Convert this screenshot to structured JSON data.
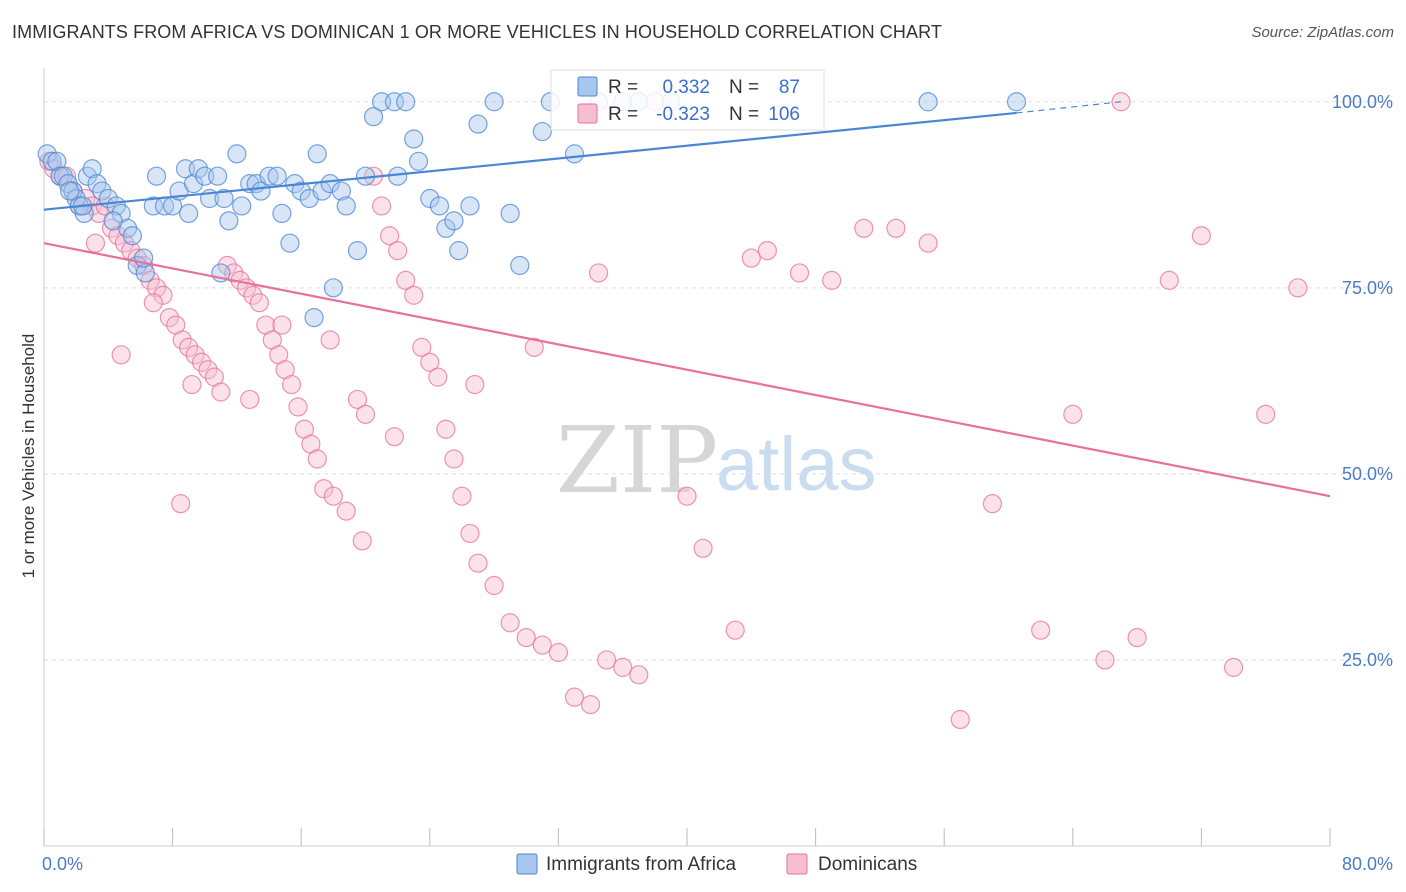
{
  "title": "IMMIGRANTS FROM AFRICA VS DOMINICAN 1 OR MORE VEHICLES IN HOUSEHOLD CORRELATION CHART",
  "source": "Source: ZipAtlas.com",
  "watermark": {
    "zip": "ZIP",
    "atlas": "atlas"
  },
  "colors": {
    "blue": "#4a86d4",
    "pink": "#e8709a",
    "blue_fill": "#a9c6ee",
    "pink_fill": "#f6bfd1",
    "tick_text": "#4a7cc7"
  },
  "stats_legend": [
    {
      "r_label": "R =",
      "r_value": "0.332",
      "n_label": "N =",
      "n_value": "87",
      "color": "blue"
    },
    {
      "r_label": "R =",
      "r_value": "-0.323",
      "n_label": "N =",
      "n_value": "106",
      "color": "pink"
    }
  ],
  "chart_data": {
    "type": "scatter",
    "xlabel": "",
    "ylabel": "1 or more Vehicles in Household",
    "xlim": [
      0,
      80
    ],
    "ylim": [
      0,
      104
    ],
    "x_tick_labels": [
      "0.0%",
      "80.0%"
    ],
    "y_ticks": [
      25,
      50,
      75,
      100
    ],
    "y_tick_labels": [
      "25.0%",
      "50.0%",
      "75.0%",
      "100.0%"
    ],
    "grid": true,
    "legend": "bottom-center",
    "series": [
      {
        "name": "Immigrants from Africa",
        "color": "blue",
        "trend": {
          "x": [
            0,
            60.5
          ],
          "y": [
            85.5,
            98.5
          ],
          "dashed_to": [
            67,
            100
          ]
        },
        "points": [
          [
            0.2,
            93
          ],
          [
            0.5,
            92
          ],
          [
            0.8,
            92
          ],
          [
            1,
            90
          ],
          [
            1.2,
            90
          ],
          [
            1.5,
            89
          ],
          [
            1.8,
            88
          ],
          [
            2,
            87
          ],
          [
            2.2,
            86
          ],
          [
            2.5,
            85
          ],
          [
            2.7,
            90
          ],
          [
            3,
            91
          ],
          [
            3.3,
            89
          ],
          [
            3.6,
            88
          ],
          [
            4,
            87
          ],
          [
            4.5,
            86
          ],
          [
            4.8,
            85
          ],
          [
            5.2,
            83
          ],
          [
            5.5,
            82
          ],
          [
            5.8,
            78
          ],
          [
            6.3,
            77
          ],
          [
            6.8,
            86
          ],
          [
            7,
            90
          ],
          [
            7.5,
            86
          ],
          [
            8,
            86
          ],
          [
            8.4,
            88
          ],
          [
            8.8,
            91
          ],
          [
            9,
            85
          ],
          [
            9.3,
            89
          ],
          [
            9.6,
            91
          ],
          [
            10,
            90
          ],
          [
            10.3,
            87
          ],
          [
            10.8,
            90
          ],
          [
            11.2,
            87
          ],
          [
            11.5,
            84
          ],
          [
            12,
            93
          ],
          [
            12.3,
            86
          ],
          [
            12.8,
            89
          ],
          [
            13.2,
            89
          ],
          [
            13.5,
            88
          ],
          [
            14,
            90
          ],
          [
            14.5,
            90
          ],
          [
            14.8,
            85
          ],
          [
            15.3,
            81
          ],
          [
            15.6,
            89
          ],
          [
            16,
            88
          ],
          [
            16.5,
            87
          ],
          [
            17,
            93
          ],
          [
            17.3,
            88
          ],
          [
            17.8,
            89
          ],
          [
            18,
            75
          ],
          [
            18.5,
            88
          ],
          [
            18.8,
            86
          ],
          [
            19.5,
            80
          ],
          [
            20,
            90
          ],
          [
            20.5,
            98
          ],
          [
            21,
            100
          ],
          [
            21.8,
            100
          ],
          [
            22,
            90
          ],
          [
            22.5,
            100
          ],
          [
            23,
            95
          ],
          [
            23.3,
            92
          ],
          [
            24,
            87
          ],
          [
            24.6,
            86
          ],
          [
            25,
            83
          ],
          [
            25.5,
            84
          ],
          [
            25.8,
            80
          ],
          [
            26.5,
            86
          ],
          [
            27,
            97
          ],
          [
            28,
            100
          ],
          [
            29,
            85
          ],
          [
            29.6,
            78
          ],
          [
            31,
            96
          ],
          [
            31.5,
            100
          ],
          [
            33,
            93
          ],
          [
            34.5,
            100
          ],
          [
            36,
            100
          ],
          [
            37,
            100
          ],
          [
            39,
            100
          ],
          [
            55,
            100
          ],
          [
            60.5,
            100
          ],
          [
            1.6,
            88
          ],
          [
            2.4,
            86
          ],
          [
            4.3,
            84
          ],
          [
            6.2,
            79
          ],
          [
            11,
            77
          ],
          [
            16.8,
            71
          ]
        ]
      },
      {
        "name": "Dominicans",
        "color": "pink",
        "trend": {
          "x": [
            0,
            80
          ],
          "y": [
            81,
            47
          ]
        },
        "points": [
          [
            0.3,
            92
          ],
          [
            0.6,
            91
          ],
          [
            1,
            90
          ],
          [
            1.4,
            90
          ],
          [
            1.8,
            88
          ],
          [
            2.2,
            86
          ],
          [
            2.6,
            87
          ],
          [
            3,
            86
          ],
          [
            3.4,
            85
          ],
          [
            3.8,
            86
          ],
          [
            4.2,
            83
          ],
          [
            4.6,
            82
          ],
          [
            5,
            81
          ],
          [
            5.4,
            80
          ],
          [
            5.8,
            79
          ],
          [
            6.2,
            78
          ],
          [
            6.6,
            76
          ],
          [
            7,
            75
          ],
          [
            7.4,
            74
          ],
          [
            7.8,
            71
          ],
          [
            8.2,
            70
          ],
          [
            8.6,
            68
          ],
          [
            9,
            67
          ],
          [
            9.4,
            66
          ],
          [
            9.8,
            65
          ],
          [
            10.2,
            64
          ],
          [
            10.6,
            63
          ],
          [
            11,
            61
          ],
          [
            11.4,
            78
          ],
          [
            11.8,
            77
          ],
          [
            12.2,
            76
          ],
          [
            12.6,
            75
          ],
          [
            13,
            74
          ],
          [
            13.4,
            73
          ],
          [
            13.8,
            70
          ],
          [
            14.2,
            68
          ],
          [
            14.6,
            66
          ],
          [
            15,
            64
          ],
          [
            15.4,
            62
          ],
          [
            15.8,
            59
          ],
          [
            16.2,
            56
          ],
          [
            16.6,
            54
          ],
          [
            17,
            52
          ],
          [
            17.4,
            48
          ],
          [
            18,
            47
          ],
          [
            18.8,
            45
          ],
          [
            19.5,
            60
          ],
          [
            20,
            58
          ],
          [
            20.5,
            90
          ],
          [
            21,
            86
          ],
          [
            21.5,
            82
          ],
          [
            22,
            80
          ],
          [
            22.5,
            76
          ],
          [
            23,
            74
          ],
          [
            23.5,
            67
          ],
          [
            24,
            65
          ],
          [
            24.5,
            63
          ],
          [
            25,
            56
          ],
          [
            25.5,
            52
          ],
          [
            26,
            47
          ],
          [
            26.5,
            42
          ],
          [
            27,
            38
          ],
          [
            28,
            35
          ],
          [
            29,
            30
          ],
          [
            30,
            28
          ],
          [
            31,
            27
          ],
          [
            32,
            26
          ],
          [
            33,
            20
          ],
          [
            34,
            19
          ],
          [
            35,
            25
          ],
          [
            36,
            24
          ],
          [
            37,
            23
          ],
          [
            38,
            100
          ],
          [
            40,
            47
          ],
          [
            41,
            40
          ],
          [
            43,
            29
          ],
          [
            44,
            79
          ],
          [
            45,
            80
          ],
          [
            47,
            77
          ],
          [
            49,
            76
          ],
          [
            51,
            83
          ],
          [
            53,
            83
          ],
          [
            55,
            81
          ],
          [
            57,
            17
          ],
          [
            59,
            46
          ],
          [
            62,
            29
          ],
          [
            64,
            58
          ],
          [
            66,
            25
          ],
          [
            68,
            28
          ],
          [
            70,
            76
          ],
          [
            72,
            82
          ],
          [
            74,
            24
          ],
          [
            76,
            58
          ],
          [
            78,
            75
          ],
          [
            8.5,
            46
          ],
          [
            3.2,
            81
          ],
          [
            9.2,
            62
          ],
          [
            6.8,
            73
          ],
          [
            12.8,
            60
          ],
          [
            4.8,
            66
          ],
          [
            14.8,
            70
          ],
          [
            17.8,
            68
          ],
          [
            19.8,
            41
          ],
          [
            21.8,
            55
          ],
          [
            26.8,
            62
          ],
          [
            30.5,
            67
          ],
          [
            34.5,
            77
          ],
          [
            67,
            100
          ]
        ]
      }
    ]
  }
}
